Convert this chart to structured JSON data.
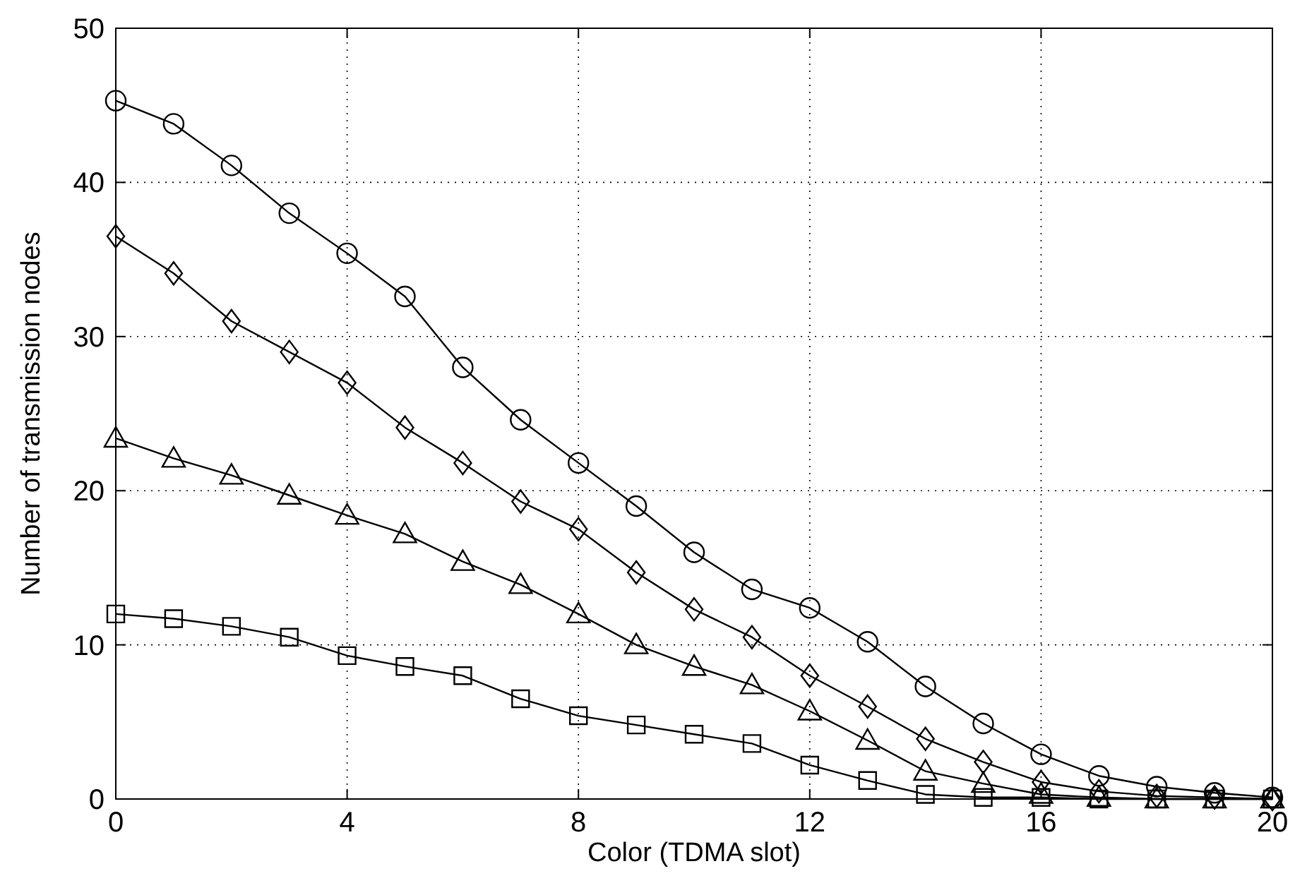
{
  "chart_data": {
    "type": "line",
    "xlabel": "Color (TDMA slot)",
    "ylabel": "Number of transmission nodes",
    "x": [
      0,
      1,
      2,
      3,
      4,
      5,
      6,
      7,
      8,
      9,
      10,
      11,
      12,
      13,
      14,
      15,
      16,
      17,
      18,
      19,
      20
    ],
    "series": [
      {
        "color": "#000000",
        "marker": "circle",
        "values": [
          45.3,
          43.8,
          41.1,
          38.0,
          35.4,
          32.6,
          28.0,
          24.6,
          21.8,
          19.0,
          16.0,
          13.6,
          12.4,
          10.2,
          7.3,
          4.9,
          2.9,
          1.5,
          0.8,
          0.4,
          0.1
        ]
      },
      {
        "color": "#000000",
        "marker": "diamond",
        "values": [
          36.5,
          34.1,
          31.0,
          29.0,
          27.0,
          24.1,
          21.8,
          19.3,
          17.5,
          14.7,
          12.3,
          10.5,
          8.0,
          6.0,
          3.9,
          2.4,
          1.1,
          0.5,
          0.2,
          0.1,
          0.0
        ]
      },
      {
        "color": "#000000",
        "marker": "triangle",
        "values": [
          23.4,
          22.1,
          21.0,
          19.7,
          18.4,
          17.2,
          15.4,
          13.9,
          12.0,
          10.0,
          8.6,
          7.4,
          5.7,
          3.8,
          1.8,
          1.0,
          0.3,
          0.1,
          0,
          0,
          0
        ]
      },
      {
        "color": "#000000",
        "marker": "square",
        "values": [
          12.0,
          11.7,
          11.2,
          10.5,
          9.3,
          8.6,
          8.0,
          6.5,
          5.4,
          4.8,
          4.2,
          3.6,
          2.2,
          1.2,
          0.3,
          0.1,
          0.1,
          0,
          0,
          0,
          0
        ]
      }
    ],
    "xlim": [
      0,
      20
    ],
    "xticks": [
      0,
      4,
      8,
      12,
      16,
      20
    ],
    "ylim": [
      0,
      50
    ],
    "yticks": [
      0,
      10,
      20,
      30,
      40,
      50
    ],
    "grid": true,
    "line_style": "solid"
  }
}
